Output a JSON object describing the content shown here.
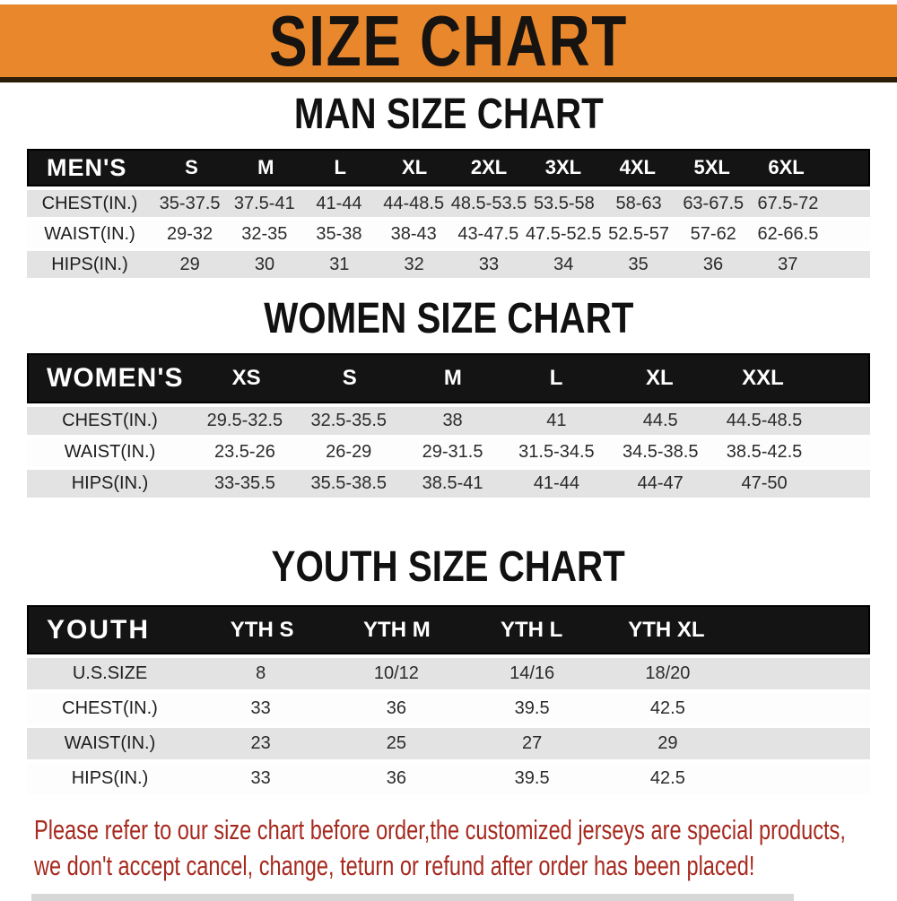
{
  "banner": {
    "title": "SIZE CHART"
  },
  "colors": {
    "banner_bg": "#e8872c",
    "banner_edge": "#2b1d07",
    "table_header_bg": "#141414",
    "table_header_text": "#ffffff",
    "row_shaded": "#e3e3e3",
    "row_plain": "#fdfdfd",
    "footer_text": "#a62a1f"
  },
  "sections": [
    {
      "id": "men",
      "heading": "MAN SIZE CHART",
      "header_label": "MEN'S",
      "columns": [
        "S",
        "M",
        "L",
        "XL",
        "2XL",
        "3XL",
        "4XL",
        "5XL",
        "6XL"
      ],
      "rows": [
        {
          "label": "CHEST(IN.)",
          "values": [
            "35-37.5",
            "37.5-41",
            "41-44",
            "44-48.5",
            "48.5-53.5",
            "53.5-58",
            "58-63",
            "63-67.5",
            "67.5-72"
          ]
        },
        {
          "label": "WAIST(IN.)",
          "values": [
            "29-32",
            "32-35",
            "35-38",
            "38-43",
            "43-47.5",
            "47.5-52.5",
            "52.5-57",
            "57-62",
            "62-66.5"
          ]
        },
        {
          "label": "HIPS(IN.)",
          "values": [
            "29",
            "30",
            "31",
            "32",
            "33",
            "34",
            "35",
            "36",
            "37"
          ]
        }
      ]
    },
    {
      "id": "women",
      "heading": "WOMEN SIZE CHART",
      "header_label": "WOMEN'S",
      "columns": [
        "XS",
        "S",
        "M",
        "L",
        "XL",
        "XXL"
      ],
      "rows": [
        {
          "label": "CHEST(IN.)",
          "values": [
            "29.5-32.5",
            "32.5-35.5",
            "38",
            "41",
            "44.5",
            "44.5-48.5"
          ]
        },
        {
          "label": "WAIST(IN.)",
          "values": [
            "23.5-26",
            "26-29",
            "29-31.5",
            "31.5-34.5",
            "34.5-38.5",
            "38.5-42.5"
          ]
        },
        {
          "label": "HIPS(IN.)",
          "values": [
            "33-35.5",
            "35.5-38.5",
            "38.5-41",
            "41-44",
            "44-47",
            "47-50"
          ]
        }
      ]
    },
    {
      "id": "youth",
      "heading": "YOUTH SIZE CHART",
      "header_label": "YOUTH",
      "columns": [
        "YTH S",
        "YTH M",
        "YTH L",
        "YTH XL"
      ],
      "rows": [
        {
          "label": "U.S.SIZE",
          "values": [
            "8",
            "10/12",
            "14/16",
            "18/20"
          ]
        },
        {
          "label": "CHEST(IN.)",
          "values": [
            "33",
            "36",
            "39.5",
            "42.5"
          ]
        },
        {
          "label": "WAIST(IN.)",
          "values": [
            "23",
            "25",
            "27",
            "29"
          ]
        },
        {
          "label": "HIPS(IN.)",
          "values": [
            "33",
            "36",
            "39.5",
            "42.5"
          ]
        }
      ]
    }
  ],
  "footer": {
    "lines": [
      "Please refer to our size chart before order,the customized jerseys are special products,",
      "we don't accept cancel, change, teturn or refund after order has been placed!"
    ]
  }
}
